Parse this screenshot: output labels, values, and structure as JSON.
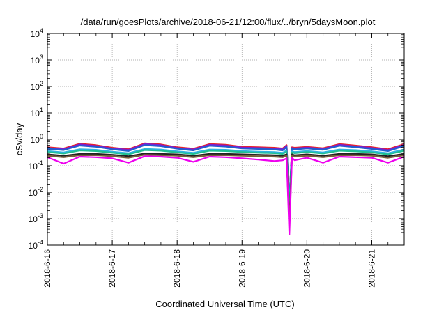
{
  "chart_data": {
    "type": "line",
    "title": "/data/run/goesPlots/archive/2018-06-21/12:00/flux/../bryn/5daysMoon.plot",
    "xlabel": "Coordinated Universal Time (UTC)",
    "ylabel": "cSv/day",
    "yscale": "log",
    "xlim": [
      "2018-06-16 00:00",
      "2018-06-21 12:00"
    ],
    "ylim": [
      0.0001,
      10000
    ],
    "grid": true,
    "legend": "none",
    "x_ticks": [
      {
        "label": "2018-6-16",
        "day": 0
      },
      {
        "label": "2018-6-17",
        "day": 1
      },
      {
        "label": "2018-6-18",
        "day": 2
      },
      {
        "label": "2018-6-19",
        "day": 3
      },
      {
        "label": "2018-6-20",
        "day": 4
      },
      {
        "label": "2018-6-21",
        "day": 5
      }
    ],
    "y_ticks": [
      {
        "base": "10",
        "exp": "-4",
        "value": 0.0001
      },
      {
        "base": "10",
        "exp": "-3",
        "value": 0.001
      },
      {
        "base": "10",
        "exp": "-2",
        "value": 0.01
      },
      {
        "base": "10",
        "exp": "-1",
        "value": 0.1
      },
      {
        "base": "10",
        "exp": "0",
        "value": 1
      },
      {
        "base": "10",
        "exp": "1",
        "value": 10
      },
      {
        "base": "10",
        "exp": "2",
        "value": 100
      },
      {
        "base": "10",
        "exp": "3",
        "value": 1000
      },
      {
        "base": "10",
        "exp": "4",
        "value": 10000
      }
    ],
    "x_dates": [
      "2018-06-16 00:00",
      "2018-06-16 06:00",
      "2018-06-16 12:00",
      "2018-06-16 18:00",
      "2018-06-17 00:00",
      "2018-06-17 06:00",
      "2018-06-17 12:00",
      "2018-06-17 18:00",
      "2018-06-18 00:00",
      "2018-06-18 06:00",
      "2018-06-18 12:00",
      "2018-06-18 18:00",
      "2018-06-19 00:00",
      "2018-06-19 06:00",
      "2018-06-19 12:00",
      "2018-06-19 15:00",
      "2018-06-19 16:30",
      "2018-06-19 17:30",
      "2018-06-19 18:30",
      "2018-06-19 19:30",
      "2018-06-20 00:00",
      "2018-06-20 06:00",
      "2018-06-20 12:00",
      "2018-06-20 18:00",
      "2018-06-21 00:00",
      "2018-06-21 06:00",
      "2018-06-21 12:00"
    ],
    "series": [
      {
        "color": "#e8202a",
        "values": [
          0.5,
          0.45,
          0.68,
          0.6,
          0.48,
          0.42,
          0.7,
          0.64,
          0.5,
          0.44,
          0.66,
          0.62,
          0.52,
          0.5,
          0.48,
          0.45,
          0.6,
          0.0045,
          0.5,
          0.48,
          0.52,
          0.46,
          0.66,
          0.58,
          0.5,
          0.42,
          0.66
        ]
      },
      {
        "color": "#7a1fd0",
        "values": [
          0.47,
          0.42,
          0.64,
          0.56,
          0.45,
          0.4,
          0.66,
          0.6,
          0.47,
          0.41,
          0.62,
          0.58,
          0.49,
          0.47,
          0.45,
          0.42,
          0.56,
          0.004,
          0.47,
          0.45,
          0.49,
          0.43,
          0.62,
          0.54,
          0.47,
          0.39,
          0.62
        ]
      },
      {
        "color": "#1f5fd0",
        "values": [
          0.44,
          0.39,
          0.58,
          0.52,
          0.42,
          0.36,
          0.6,
          0.55,
          0.44,
          0.38,
          0.57,
          0.53,
          0.45,
          0.43,
          0.41,
          0.38,
          0.5,
          0.005,
          0.44,
          0.41,
          0.45,
          0.4,
          0.57,
          0.5,
          0.43,
          0.36,
          0.56
        ]
      },
      {
        "color": "#2fb3e0",
        "values": [
          0.36,
          0.32,
          0.42,
          0.4,
          0.34,
          0.3,
          0.43,
          0.41,
          0.35,
          0.31,
          0.41,
          0.4,
          0.36,
          0.34,
          0.33,
          0.31,
          0.38,
          0.003,
          0.35,
          0.33,
          0.36,
          0.32,
          0.41,
          0.39,
          0.35,
          0.3,
          0.41
        ]
      },
      {
        "color": "#20c090",
        "values": [
          0.33,
          0.29,
          0.38,
          0.36,
          0.31,
          0.27,
          0.39,
          0.37,
          0.32,
          0.28,
          0.37,
          0.36,
          0.33,
          0.31,
          0.3,
          0.28,
          0.34,
          0.0025,
          0.32,
          0.3,
          0.33,
          0.29,
          0.37,
          0.35,
          0.32,
          0.27,
          0.37
        ]
      },
      {
        "color": "#222222",
        "values": [
          0.27,
          0.24,
          0.28,
          0.28,
          0.26,
          0.23,
          0.29,
          0.28,
          0.27,
          0.24,
          0.28,
          0.28,
          0.27,
          0.26,
          0.25,
          0.24,
          0.27,
          0.0006,
          0.27,
          0.25,
          0.27,
          0.24,
          0.28,
          0.28,
          0.27,
          0.23,
          0.28
        ]
      },
      {
        "color": "#7a5c3a",
        "values": [
          0.24,
          0.21,
          0.25,
          0.25,
          0.23,
          0.2,
          0.26,
          0.25,
          0.24,
          0.21,
          0.25,
          0.25,
          0.24,
          0.23,
          0.22,
          0.21,
          0.24,
          0.0005,
          0.24,
          0.22,
          0.24,
          0.21,
          0.25,
          0.25,
          0.24,
          0.2,
          0.25
        ]
      },
      {
        "color": "#ee00ee",
        "values": [
          0.21,
          0.12,
          0.22,
          0.21,
          0.19,
          0.13,
          0.23,
          0.22,
          0.2,
          0.14,
          0.22,
          0.21,
          0.19,
          0.17,
          0.15,
          0.16,
          0.19,
          0.00025,
          0.2,
          0.16,
          0.2,
          0.13,
          0.22,
          0.21,
          0.2,
          0.13,
          0.22
        ]
      }
    ]
  }
}
